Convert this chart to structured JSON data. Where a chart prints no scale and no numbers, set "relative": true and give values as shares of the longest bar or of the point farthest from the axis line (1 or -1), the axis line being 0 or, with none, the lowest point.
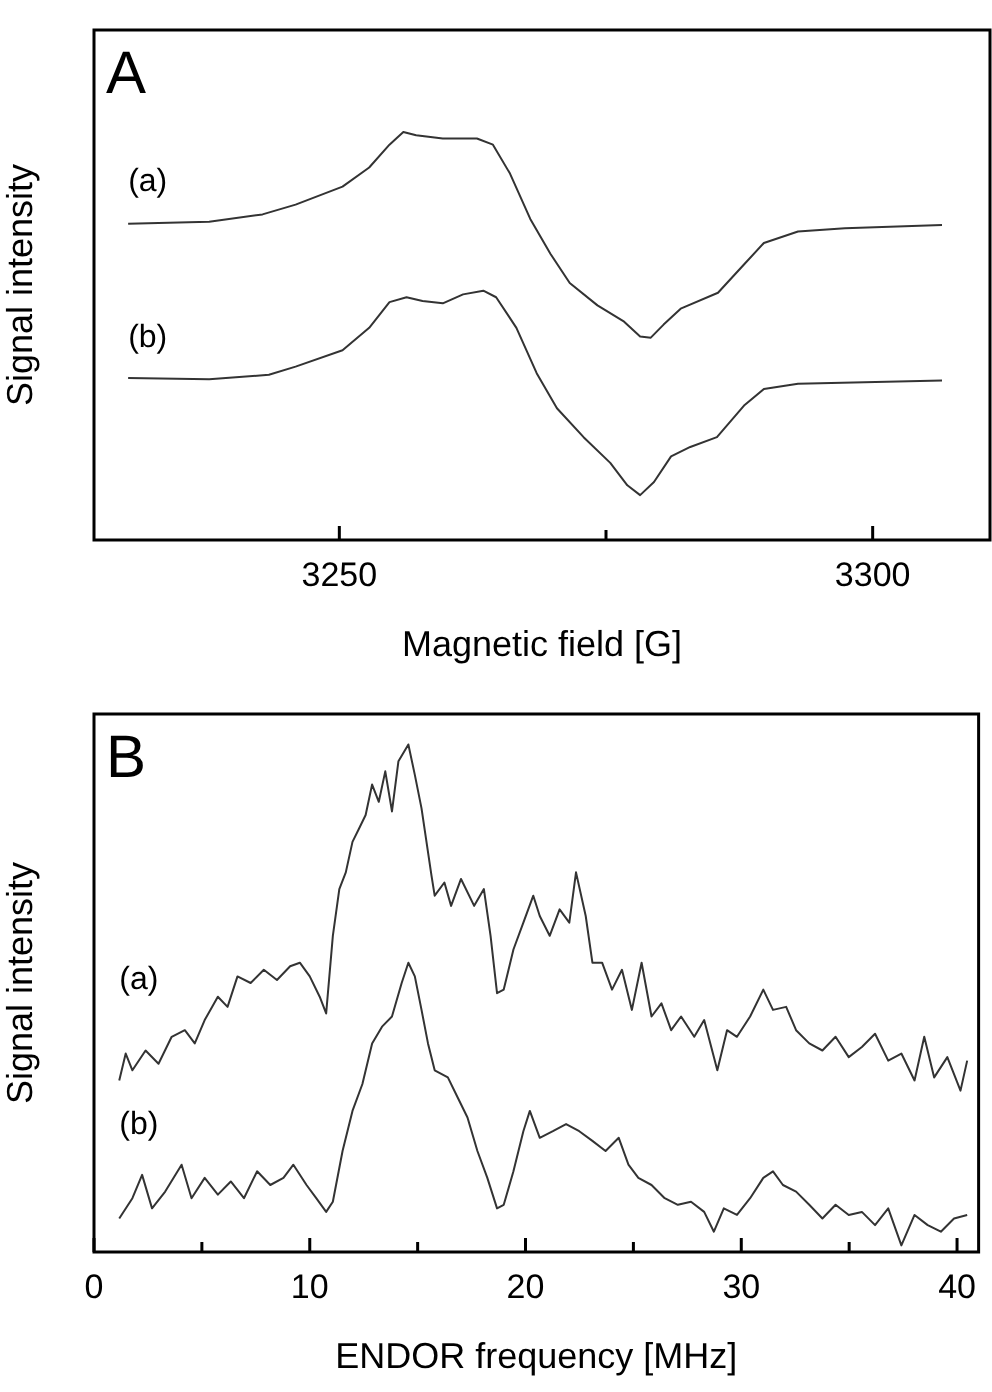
{
  "chart_data": [
    {
      "type": "line",
      "title": "A",
      "xlabel": "Magnetic field [G]",
      "ylabel": "Signal intensity",
      "relative": true,
      "marker": "none",
      "xlim": [
        3227,
        3311
      ],
      "xticks": [
        3250,
        {
          "value": 3275,
          "label": null
        },
        3300
      ],
      "series": [
        {
          "name": "(a)",
          "color": "#333333",
          "x": [
            3230.2,
            3237.8,
            3242.8,
            3245.9,
            3250.3,
            3252.8,
            3254.7,
            3256.0,
            3257.2,
            3259.7,
            3262.9,
            3264.4,
            3266.0,
            3267.9,
            3269.8,
            3271.6,
            3274.2,
            3276.7,
            3278.2,
            3279.2,
            3280.4,
            3282.0,
            3285.5,
            3288.0,
            3289.8,
            3293.0,
            3297.4,
            3306.5
          ],
          "values": [
            0.775,
            0.78,
            0.798,
            0.822,
            0.866,
            0.913,
            0.969,
            1.0,
            0.992,
            0.984,
            0.984,
            0.969,
            0.898,
            0.787,
            0.701,
            0.63,
            0.575,
            0.535,
            0.499,
            0.496,
            0.528,
            0.567,
            0.606,
            0.677,
            0.728,
            0.756,
            0.764,
            0.772
          ]
        },
        {
          "name": "(b)",
          "color": "#333333",
          "x": [
            3230.2,
            3237.8,
            3243.4,
            3245.9,
            3250.3,
            3252.8,
            3254.7,
            3256.3,
            3257.8,
            3259.7,
            3261.6,
            3263.5,
            3264.7,
            3266.6,
            3268.5,
            3270.4,
            3272.9,
            3275.4,
            3277.0,
            3278.2,
            3279.5,
            3281.1,
            3282.9,
            3285.4,
            3288.0,
            3289.8,
            3293.0,
            3306.5
          ],
          "values": [
            0.397,
            0.394,
            0.405,
            0.425,
            0.465,
            0.52,
            0.583,
            0.595,
            0.586,
            0.58,
            0.602,
            0.611,
            0.595,
            0.52,
            0.409,
            0.323,
            0.252,
            0.189,
            0.134,
            0.11,
            0.142,
            0.205,
            0.228,
            0.252,
            0.331,
            0.37,
            0.383,
            0.391
          ]
        }
      ]
    },
    {
      "type": "line",
      "title": "B",
      "xlabel": "ENDOR frequency [MHz]",
      "ylabel": "Signal intensity",
      "relative": true,
      "marker": "none",
      "xlim": [
        0,
        41
      ],
      "xticks": [
        0,
        {
          "value": 5,
          "label": null
        },
        10,
        {
          "value": 15,
          "label": null
        },
        20,
        {
          "value": 25,
          "label": null
        },
        30,
        {
          "value": 35,
          "label": null
        },
        40
      ],
      "series": [
        {
          "name": "(a)",
          "color": "#333333",
          "x": [
            1.17,
            1.47,
            1.78,
            2.39,
            2.99,
            3.6,
            4.21,
            4.67,
            5.13,
            5.74,
            6.19,
            6.65,
            7.26,
            7.87,
            8.48,
            9.09,
            9.54,
            10.0,
            10.46,
            10.76,
            11.07,
            11.37,
            11.67,
            11.98,
            12.28,
            12.59,
            12.89,
            13.2,
            13.5,
            13.81,
            14.11,
            14.57,
            14.87,
            15.18,
            15.64,
            15.79,
            16.24,
            16.55,
            17.01,
            17.62,
            18.07,
            18.38,
            18.68,
            18.99,
            19.44,
            19.9,
            20.36,
            20.66,
            21.12,
            21.58,
            22.03,
            22.34,
            22.79,
            23.1,
            23.55,
            24.01,
            24.47,
            24.93,
            25.38,
            25.84,
            26.3,
            26.75,
            27.21,
            27.82,
            28.28,
            28.89,
            29.34,
            29.8,
            30.41,
            31.02,
            31.47,
            32.08,
            32.54,
            33.15,
            33.76,
            34.37,
            34.98,
            35.59,
            36.2,
            36.81,
            37.42,
            38.03,
            38.48,
            38.94,
            39.55,
            40.16,
            40.47
          ],
          "values": [
            0.338,
            0.391,
            0.358,
            0.397,
            0.371,
            0.424,
            0.437,
            0.411,
            0.457,
            0.503,
            0.483,
            0.543,
            0.53,
            0.556,
            0.536,
            0.563,
            0.57,
            0.543,
            0.503,
            0.47,
            0.623,
            0.715,
            0.748,
            0.808,
            0.834,
            0.861,
            0.921,
            0.887,
            0.947,
            0.868,
            0.967,
            1.0,
            0.94,
            0.874,
            0.742,
            0.702,
            0.728,
            0.682,
            0.735,
            0.682,
            0.715,
            0.623,
            0.51,
            0.517,
            0.596,
            0.649,
            0.702,
            0.662,
            0.623,
            0.675,
            0.649,
            0.748,
            0.662,
            0.57,
            0.57,
            0.517,
            0.556,
            0.477,
            0.57,
            0.464,
            0.49,
            0.437,
            0.464,
            0.424,
            0.457,
            0.358,
            0.437,
            0.424,
            0.464,
            0.517,
            0.477,
            0.483,
            0.437,
            0.411,
            0.397,
            0.424,
            0.384,
            0.404,
            0.43,
            0.377,
            0.391,
            0.338,
            0.424,
            0.344,
            0.384,
            0.318,
            0.377
          ]
        },
        {
          "name": "(b)",
          "color": "#333333",
          "x": [
            1.17,
            1.78,
            2.23,
            2.69,
            3.3,
            4.06,
            4.52,
            5.13,
            5.74,
            6.34,
            6.95,
            7.56,
            8.17,
            8.78,
            9.24,
            9.85,
            10.3,
            10.76,
            11.07,
            11.52,
            11.98,
            12.44,
            12.89,
            13.35,
            13.81,
            14.26,
            14.57,
            14.87,
            15.18,
            15.48,
            15.79,
            16.4,
            16.85,
            17.31,
            17.77,
            18.23,
            18.68,
            18.99,
            19.44,
            19.9,
            20.2,
            20.66,
            21.27,
            21.88,
            22.49,
            23.1,
            23.71,
            24.32,
            24.77,
            25.23,
            25.84,
            26.45,
            27.06,
            27.67,
            28.28,
            28.73,
            29.19,
            29.8,
            30.41,
            31.02,
            31.47,
            31.93,
            32.54,
            33.15,
            33.76,
            34.37,
            34.98,
            35.59,
            36.2,
            36.81,
            37.42,
            38.03,
            38.64,
            39.25,
            39.86,
            40.47
          ],
          "values": [
            0.066,
            0.106,
            0.152,
            0.086,
            0.119,
            0.172,
            0.106,
            0.146,
            0.113,
            0.139,
            0.106,
            0.159,
            0.132,
            0.146,
            0.172,
            0.132,
            0.106,
            0.079,
            0.099,
            0.199,
            0.278,
            0.331,
            0.411,
            0.444,
            0.464,
            0.53,
            0.57,
            0.543,
            0.477,
            0.411,
            0.358,
            0.344,
            0.305,
            0.265,
            0.199,
            0.146,
            0.086,
            0.093,
            0.159,
            0.238,
            0.278,
            0.225,
            0.238,
            0.252,
            0.238,
            0.219,
            0.199,
            0.225,
            0.172,
            0.146,
            0.132,
            0.106,
            0.093,
            0.099,
            0.079,
            0.04,
            0.086,
            0.073,
            0.106,
            0.146,
            0.159,
            0.132,
            0.119,
            0.093,
            0.066,
            0.093,
            0.073,
            0.079,
            0.053,
            0.086,
            0.013,
            0.073,
            0.053,
            0.04,
            0.066,
            0.073
          ]
        }
      ]
    }
  ]
}
